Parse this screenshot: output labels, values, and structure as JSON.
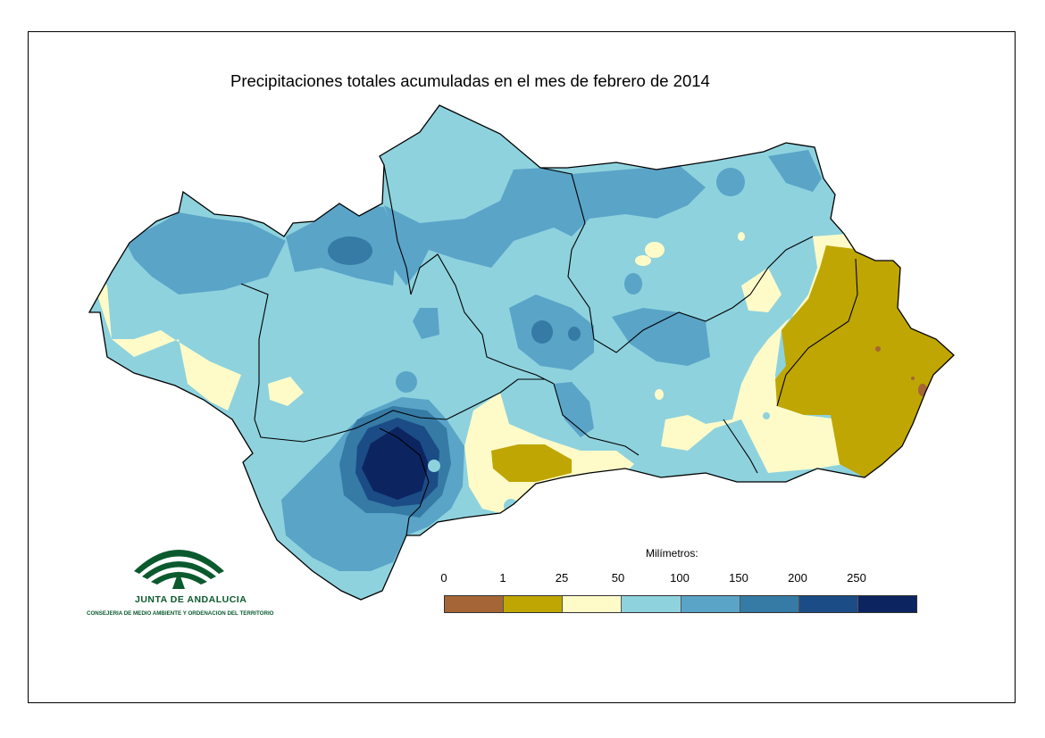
{
  "title": "Precipitaciones totales acumuladas en el mes de febrero de 2014",
  "legend": {
    "title": "Milímetros:",
    "ticks": [
      "0",
      "1",
      "25",
      "50",
      "100",
      "150",
      "200",
      "250"
    ],
    "classes": [
      {
        "range": "0–1",
        "color": "#a56536"
      },
      {
        "range": "1–25",
        "color": "#bfa602"
      },
      {
        "range": "25–50",
        "color": "#fefbc9"
      },
      {
        "range": "50–100",
        "color": "#8ed2de"
      },
      {
        "range": "100–150",
        "color": "#5aa4c8"
      },
      {
        "range": "150–200",
        "color": "#357ba6"
      },
      {
        "range": "200–250",
        "color": "#1b4c86"
      },
      {
        "range": "250+",
        "color": "#0c2561"
      }
    ]
  },
  "logo": {
    "name": "JUNTA DE ANDALUCIA",
    "subtitle": "CONSEJERIA DE MEDIO AMBIENTE Y ORDENACION DEL TERRITORIO",
    "color": "#0b5a2e"
  }
}
